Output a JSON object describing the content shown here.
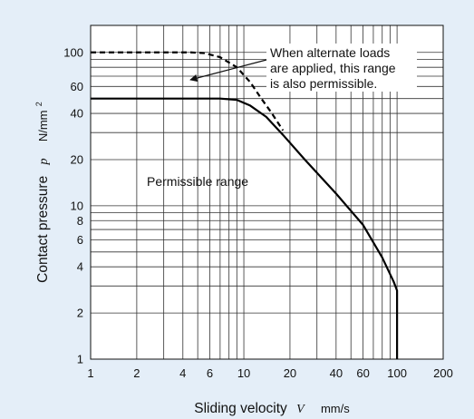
{
  "chart_data": {
    "type": "line",
    "scale": {
      "x": "log",
      "y": "log"
    },
    "xlim": [
      1,
      200
    ],
    "ylim": [
      1,
      150
    ],
    "grid": true,
    "x_ticks": [
      1,
      2,
      4,
      6,
      10,
      20,
      40,
      60,
      100,
      200
    ],
    "x_tick_labels": [
      "1",
      "2",
      "4",
      "6",
      "10",
      "20",
      "40",
      "60",
      "100",
      "200"
    ],
    "y_ticks": [
      1,
      2,
      4,
      6,
      8,
      10,
      20,
      40,
      60,
      100
    ],
    "y_tick_labels": [
      "1",
      "2",
      "4",
      "6",
      "8",
      "10",
      "20",
      "40",
      "60",
      "100"
    ],
    "x_gridlines": [
      1,
      2,
      3,
      4,
      5,
      6,
      7,
      8,
      9,
      10,
      20,
      30,
      40,
      50,
      60,
      70,
      80,
      90,
      100,
      200
    ],
    "y_gridlines": [
      1,
      2,
      3,
      4,
      5,
      6,
      7,
      8,
      9,
      10,
      20,
      30,
      40,
      50,
      60,
      70,
      80,
      90,
      100
    ],
    "xlabel": {
      "text": "Sliding velocity",
      "symbol": "V",
      "unit": "mm/s"
    },
    "ylabel": {
      "text": "Contact pressure",
      "symbol": "p",
      "unit": "N/mm",
      "unit_sup": "2"
    },
    "series": [
      {
        "style": "solid",
        "points": [
          [
            1,
            50
          ],
          [
            7,
            50
          ],
          [
            9,
            49
          ],
          [
            11,
            45
          ],
          [
            14,
            38
          ],
          [
            18,
            29
          ],
          [
            25,
            20
          ],
          [
            40,
            12
          ],
          [
            60,
            7.5
          ],
          [
            80,
            4.6
          ],
          [
            95,
            3.2
          ],
          [
            100,
            2.8
          ],
          [
            100,
            1
          ]
        ]
      },
      {
        "style": "dashed",
        "points": [
          [
            1,
            100
          ],
          [
            4.5,
            100
          ],
          [
            5.5,
            99
          ],
          [
            7,
            93
          ],
          [
            9,
            80
          ],
          [
            11,
            64
          ],
          [
            13,
            50
          ],
          [
            15,
            41
          ],
          [
            18,
            31
          ]
        ]
      }
    ],
    "annotations": [
      {
        "id": "alternate-loads",
        "lines": [
          "When alternate loads",
          "are applied, this range",
          "is also permissible."
        ],
        "arrow_to": [
          5.2,
          71
        ]
      },
      {
        "id": "permissible-range",
        "lines": [
          "Permissible range"
        ]
      }
    ]
  }
}
